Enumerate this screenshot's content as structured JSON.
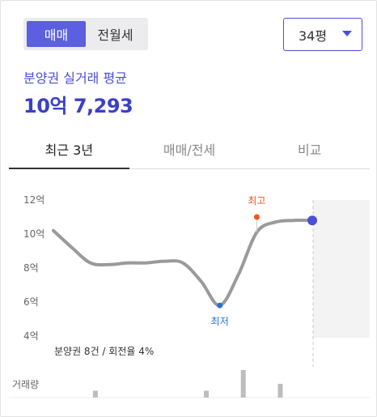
{
  "trade_toggle": {
    "options": [
      "매매",
      "전월세"
    ],
    "selected": 0
  },
  "size_select": {
    "value": "34평"
  },
  "summary": {
    "label": "분양권 실거래 평균",
    "price": "10억 7,293"
  },
  "tabs": [
    {
      "label": "최근 3년",
      "active": true
    },
    {
      "label": "매매/전세",
      "active": false
    },
    {
      "label": "비교",
      "active": false
    }
  ],
  "chart_data": {
    "type": "line",
    "y_unit": "억",
    "ylim": [
      4,
      12
    ],
    "yticks": [
      "12억",
      "10억",
      "8억",
      "6억",
      "4억"
    ],
    "y_tick_values": [
      12,
      10,
      8,
      6,
      4
    ],
    "series": [
      {
        "values": [
          10.2,
          9.2,
          8.3,
          8.2,
          8.3,
          8.3,
          8.4,
          8.3,
          7.2,
          5.8,
          7.6,
          10.1,
          10.7,
          10.8,
          10.8
        ]
      }
    ],
    "highest": {
      "label": "최고",
      "value": 11.0
    },
    "lowest": {
      "label": "최저",
      "value": 5.8
    },
    "note": "분양권 8건 / 회전율 4%",
    "volume": {
      "label": "거래량",
      "values": [
        0,
        1,
        0,
        0,
        0,
        0,
        0,
        1,
        0,
        4,
        0,
        2,
        0,
        0,
        0
      ]
    },
    "colors": {
      "line": "#9a9a9a",
      "high": "#f0571f",
      "low": "#2c6fdc",
      "current": "#4b4fd6",
      "volume": "#bdbdbd"
    }
  }
}
